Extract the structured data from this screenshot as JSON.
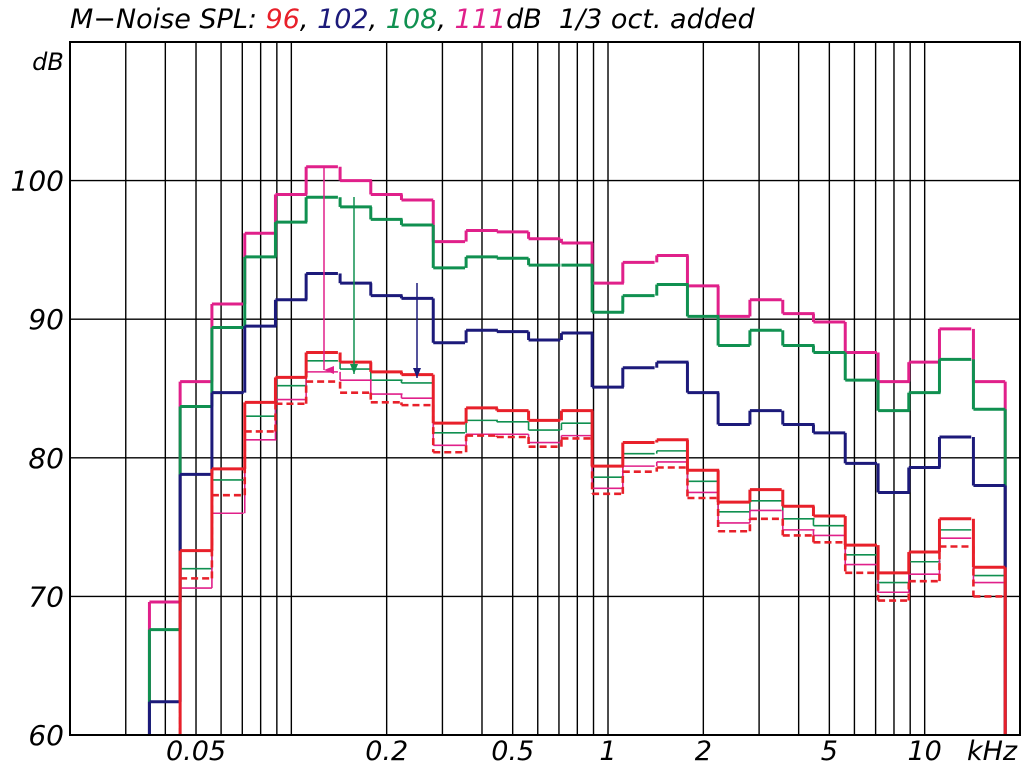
{
  "chart_data": {
    "type": "step",
    "title": [
      {
        "text": "M−Noise SPL: ",
        "color": "#000000"
      },
      {
        "text": "96",
        "color": "#e8202a"
      },
      {
        "text": ", ",
        "color": "#000000"
      },
      {
        "text": "102",
        "color": "#1c1a7a"
      },
      {
        "text": ", ",
        "color": "#000000"
      },
      {
        "text": "108",
        "color": "#109050"
      },
      {
        "text": ", ",
        "color": "#000000"
      },
      {
        "text": "111",
        "color": "#e0208a"
      },
      {
        "text": "dB  1/3 oct. added",
        "color": "#000000"
      }
    ],
    "y_label": "dB",
    "x_label": "kHz",
    "log_x": true,
    "xlim": [
      0.02,
      20
    ],
    "xticks": [
      0.05,
      0.2,
      0.5,
      1,
      2,
      5,
      10
    ],
    "xgrid": [
      0.03,
      0.04,
      0.05,
      0.06,
      0.07,
      0.08,
      0.09,
      0.1,
      0.2,
      0.3,
      0.4,
      0.5,
      0.6,
      0.7,
      0.8,
      0.9,
      1,
      2,
      3,
      4,
      5,
      6,
      7,
      8,
      9,
      10
    ],
    "ylim": [
      60,
      110
    ],
    "yticks": [
      60,
      70,
      80,
      90,
      100
    ],
    "grid": true,
    "x": [
      0.04,
      0.05,
      0.063,
      0.08,
      0.1,
      0.125,
      0.16,
      0.2,
      0.25,
      0.315,
      0.4,
      0.5,
      0.63,
      0.8,
      1,
      1.25,
      1.6,
      2,
      2.5,
      3.15,
      4,
      5,
      6.3,
      8,
      10,
      12.5,
      16
    ],
    "series": [
      {
        "color": "#e0208a",
        "style": "thick",
        "values": [
          69.6,
          85.5,
          91.1,
          96.2,
          99.0,
          101.0,
          100.0,
          99.0,
          98.6,
          95.6,
          96.4,
          96.3,
          95.8,
          95.5,
          92.6,
          94.1,
          94.6,
          92.4,
          90.2,
          91.4,
          90.4,
          89.8,
          87.6,
          85.5,
          86.9,
          89.3,
          85.5
        ]
      },
      {
        "color": "#109050",
        "style": "thick",
        "values": [
          67.6,
          83.7,
          89.4,
          94.5,
          97.0,
          98.8,
          98.1,
          97.2,
          96.8,
          93.7,
          94.5,
          94.4,
          93.9,
          93.9,
          90.5,
          91.7,
          92.5,
          90.2,
          88.1,
          89.2,
          88.1,
          87.6,
          85.6,
          83.4,
          84.7,
          87.1,
          83.5
        ]
      },
      {
        "color": "#1c1a7a",
        "style": "thick",
        "values": [
          62.4,
          78.8,
          84.7,
          89.5,
          91.4,
          93.3,
          92.6,
          91.7,
          91.5,
          88.3,
          89.2,
          89.1,
          88.5,
          89.0,
          85.1,
          86.5,
          86.9,
          84.7,
          82.4,
          83.4,
          82.4,
          81.8,
          79.6,
          77.5,
          79.3,
          81.5,
          78.0
        ]
      },
      {
        "color": "#109050",
        "style": "thin",
        "values": [
          null,
          72.0,
          78.4,
          83.0,
          85.2,
          87.0,
          86.4,
          85.6,
          85.4,
          81.8,
          82.7,
          82.6,
          82.0,
          82.5,
          78.6,
          80.3,
          80.5,
          78.3,
          76.1,
          76.9,
          75.6,
          75.1,
          73.0,
          71.0,
          72.5,
          74.8,
          71.5
        ]
      },
      {
        "color": "#e0208a",
        "style": "thin",
        "values": [
          null,
          70.6,
          76.0,
          81.3,
          84.2,
          86.2,
          85.6,
          84.6,
          84.3,
          80.9,
          81.7,
          81.7,
          81.1,
          81.6,
          77.8,
          79.4,
          79.7,
          77.5,
          75.3,
          76.2,
          74.8,
          74.4,
          72.3,
          70.3,
          71.6,
          74.2,
          71.0
        ]
      },
      {
        "color": "#e8202a",
        "style": "dashed",
        "values": [
          null,
          71.3,
          77.3,
          81.9,
          83.9,
          85.5,
          84.7,
          84.0,
          83.8,
          80.4,
          81.6,
          81.5,
          80.8,
          81.4,
          77.4,
          79.0,
          79.3,
          77.1,
          74.7,
          75.6,
          74.4,
          73.9,
          71.7,
          69.7,
          71.1,
          73.6,
          70.0
        ]
      },
      {
        "color": "#e8202a",
        "style": "thick",
        "values": [
          null,
          73.3,
          79.2,
          84.0,
          85.8,
          87.6,
          86.9,
          86.2,
          86.0,
          82.5,
          83.6,
          83.4,
          82.7,
          83.4,
          79.4,
          81.1,
          81.3,
          79.1,
          76.8,
          77.7,
          76.5,
          75.8,
          73.7,
          71.7,
          73.2,
          75.6,
          72.1
        ]
      }
    ]
  }
}
